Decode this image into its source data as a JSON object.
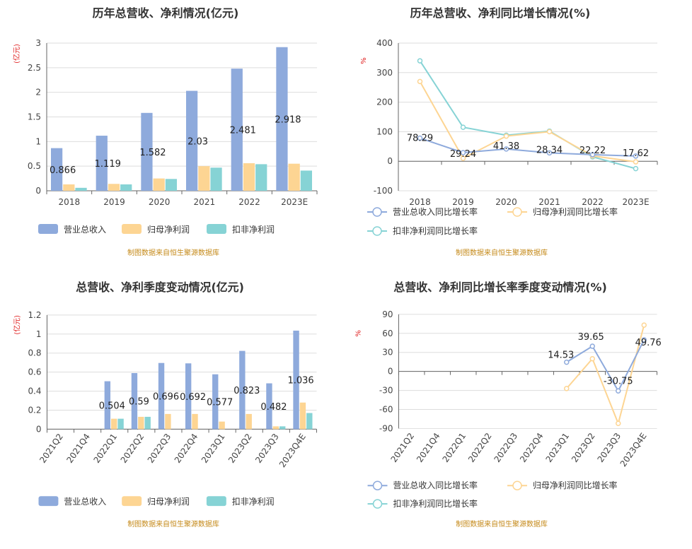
{
  "colors": {
    "revenue": "#8eaadc",
    "net_profit": "#fdd593",
    "deducted": "#86d3d5",
    "unit": "#e02020",
    "source": "#c58a1a",
    "grid": "#dddddd",
    "axis": "#666666"
  },
  "chart_data": [
    {
      "id": "annual-amount",
      "type": "bar",
      "title": "历年总营收、净利情况(亿元)",
      "ylabel": "(亿元)",
      "ylim": [
        0,
        3
      ],
      "yticks": [
        "0",
        "0.5",
        "1",
        "1.5",
        "2",
        "2.5",
        "3"
      ],
      "categories": [
        "2018",
        "2019",
        "2020",
        "2021",
        "2022",
        "2023E"
      ],
      "series": [
        {
          "name": "营业总收入",
          "values": [
            0.866,
            1.119,
            1.582,
            2.03,
            2.481,
            2.918
          ]
        },
        {
          "name": "归母净利润",
          "values": [
            0.13,
            0.14,
            0.25,
            0.5,
            0.56,
            0.55
          ]
        },
        {
          "name": "扣非净利润",
          "values": [
            0.06,
            0.13,
            0.24,
            0.47,
            0.54,
            0.41
          ]
        }
      ],
      "data_labels": [
        "0.866",
        "1.119",
        "1.582",
        "2.03",
        "2.481",
        "2.918"
      ],
      "source": "制图数据来自恒生聚源数据库"
    },
    {
      "id": "annual-growth",
      "type": "line",
      "title": "历年总营收、净利同比增长情况(%)",
      "ylabel": "%",
      "ylim": [
        -100,
        400
      ],
      "yticks": [
        "-100",
        "0",
        "100",
        "200",
        "300",
        "400"
      ],
      "categories": [
        "2018",
        "2019",
        "2020",
        "2021",
        "2022",
        "2023E"
      ],
      "series": [
        {
          "name": "营业总收入同比增长率",
          "values": [
            78.29,
            29.24,
            41.38,
            28.34,
            22.22,
            17.62
          ]
        },
        {
          "name": "归母净利润同比增长率",
          "values": [
            270,
            10,
            85,
            100,
            18,
            -2
          ]
        },
        {
          "name": "扣非净利润同比增长率",
          "values": [
            340,
            115,
            88,
            102,
            15,
            -25
          ]
        }
      ],
      "data_labels": [
        "78.29",
        "29.24",
        "41.38",
        "28.34",
        "22.22",
        "17.62"
      ],
      "source": "制图数据来自恒生聚源数据库"
    },
    {
      "id": "quarterly-amount",
      "type": "bar",
      "title": "总营收、净利季度变动情况(亿元)",
      "ylabel": "(亿元)",
      "ylim": [
        0,
        1.2
      ],
      "yticks": [
        "0",
        "0.2",
        "0.4",
        "0.6",
        "0.8",
        "1",
        "1.2"
      ],
      "categories": [
        "2021Q2",
        "2021Q4",
        "2022Q1",
        "2022Q2",
        "2022Q3",
        "2022Q4",
        "2023Q1",
        "2023Q2",
        "2023Q3",
        "2023Q4E"
      ],
      "series": [
        {
          "name": "营业总收入",
          "values": [
            null,
            null,
            0.504,
            0.59,
            0.696,
            0.692,
            0.577,
            0.823,
            0.482,
            1.036
          ]
        },
        {
          "name": "归母净利润",
          "values": [
            null,
            null,
            0.11,
            0.13,
            0.16,
            0.16,
            0.08,
            0.16,
            0.03,
            0.28
          ]
        },
        {
          "name": "扣非净利润",
          "values": [
            null,
            null,
            0.11,
            0.13,
            null,
            null,
            null,
            null,
            0.03,
            0.17
          ]
        }
      ],
      "data_labels": [
        "",
        "",
        "0.504",
        "0.59",
        "0.696",
        "0.692",
        "0.577",
        "0.823",
        "0.482",
        "1.036"
      ],
      "source": "制图数据来自恒生聚源数据库"
    },
    {
      "id": "quarterly-growth",
      "type": "line",
      "title": "总营收、净利同比增长率季度变动情况(%)",
      "ylabel": "%",
      "ylim": [
        -90,
        90
      ],
      "yticks": [
        "-90",
        "-60",
        "-30",
        "0",
        "30",
        "60",
        "90"
      ],
      "categories": [
        "2021Q2",
        "2021Q4",
        "2022Q1",
        "2022Q2",
        "2022Q3",
        "2022Q4",
        "2023Q1",
        "2023Q2",
        "2023Q3",
        "2023Q4E"
      ],
      "series": [
        {
          "name": "营业总收入同比增长率",
          "values": [
            null,
            null,
            null,
            null,
            null,
            null,
            14.53,
            39.65,
            -30.75,
            49.76
          ]
        },
        {
          "name": "归母净利润同比增长率",
          "values": [
            null,
            null,
            null,
            null,
            null,
            null,
            -27,
            20,
            -82,
            73
          ]
        },
        {
          "name": "扣非净利润同比增长率",
          "values": [
            null,
            null,
            null,
            null,
            null,
            null,
            null,
            null,
            null,
            null
          ]
        }
      ],
      "data_labels": [
        "",
        "",
        "",
        "",
        "",
        "",
        "14.53",
        "39.65",
        "-30.75",
        "49.76"
      ],
      "source": "制图数据来自恒生聚源数据库"
    }
  ]
}
